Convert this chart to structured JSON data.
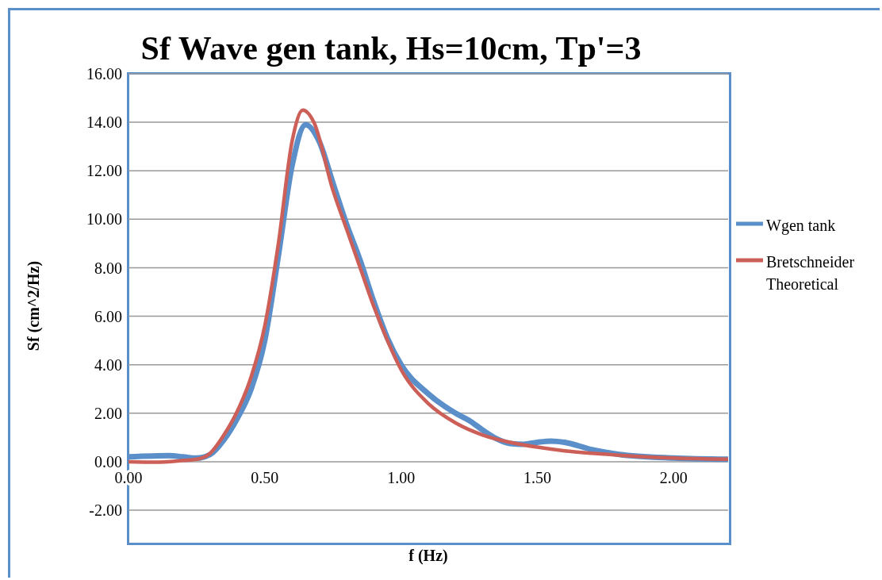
{
  "chart_data": {
    "type": "line",
    "title": "Sf Wave gen tank, Hs=10cm, Tp'=3",
    "xlabel": "f (Hz)",
    "ylabel": "Sf (cm^2/Hz)",
    "xlim": [
      0,
      2.2
    ],
    "xticks": [
      {
        "value": 0,
        "label": "0.00"
      },
      {
        "value": 0.5,
        "label": "0.50"
      },
      {
        "value": 1,
        "label": "1.00"
      },
      {
        "value": 1.5,
        "label": "1.50"
      },
      {
        "value": 2,
        "label": "2.00"
      }
    ],
    "ylim": [
      -2,
      16
    ],
    "yticks": [
      {
        "value": -2,
        "label": "-2.00"
      },
      {
        "value": 0,
        "label": "0.00"
      },
      {
        "value": 2,
        "label": "2.00"
      },
      {
        "value": 4,
        "label": "4.00"
      },
      {
        "value": 6,
        "label": "6.00"
      },
      {
        "value": 8,
        "label": "8.00"
      },
      {
        "value": 10,
        "label": "10.00"
      },
      {
        "value": 12,
        "label": "12.00"
      },
      {
        "value": 14,
        "label": "14.00"
      },
      {
        "value": 16,
        "label": "16.00"
      }
    ],
    "grid": "y",
    "legend": "right",
    "marker": "none",
    "line_style": "solid",
    "series": [
      {
        "name": "Wgen tank",
        "color": "#5b8fc9",
        "x": [
          0,
          0.15,
          0.2,
          0.25,
          0.3,
          0.35,
          0.4,
          0.45,
          0.5,
          0.55,
          0.6,
          0.65,
          0.7,
          0.75,
          0.8,
          0.85,
          0.9,
          0.95,
          1.0,
          1.1,
          1.2,
          1.25,
          1.3,
          1.35,
          1.4,
          1.45,
          1.5,
          1.55,
          1.6,
          1.7,
          1.8,
          2.0,
          2.2
        ],
        "values": [
          0.2,
          0.25,
          0.2,
          0.15,
          0.3,
          0.9,
          1.8,
          3.0,
          5.0,
          8.5,
          12.2,
          13.9,
          13.2,
          11.5,
          9.8,
          8.3,
          6.6,
          5.1,
          4.0,
          2.8,
          2.0,
          1.7,
          1.3,
          0.95,
          0.75,
          0.72,
          0.8,
          0.85,
          0.8,
          0.5,
          0.3,
          0.15,
          0.1
        ]
      },
      {
        "name": "Bretschneider Theoretical",
        "color": "#cc5f58",
        "x": [
          0,
          0.1,
          0.2,
          0.25,
          0.3,
          0.35,
          0.4,
          0.45,
          0.5,
          0.55,
          0.6,
          0.64,
          0.68,
          0.75,
          0.8,
          0.85,
          0.9,
          0.95,
          1.0,
          1.1,
          1.2,
          1.3,
          1.4,
          1.5,
          1.6,
          1.7,
          1.8,
          2.0,
          2.2
        ],
        "values": [
          0,
          -0.02,
          0.05,
          0.1,
          0.35,
          1.1,
          2.1,
          3.5,
          5.6,
          9.0,
          13.2,
          14.5,
          14.0,
          11.2,
          9.6,
          8.0,
          6.4,
          5.0,
          3.8,
          2.4,
          1.6,
          1.1,
          0.8,
          0.6,
          0.45,
          0.35,
          0.27,
          0.15,
          0.1
        ]
      }
    ]
  }
}
